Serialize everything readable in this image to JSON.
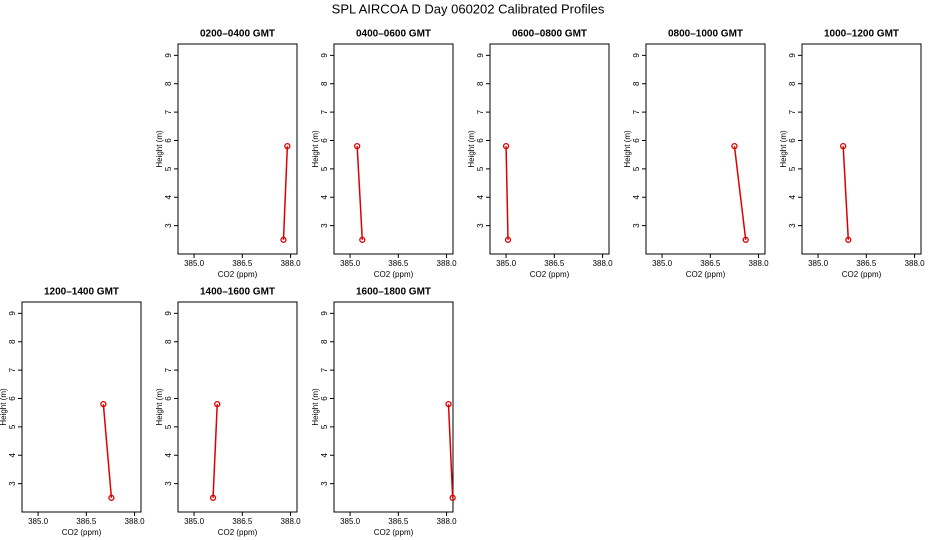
{
  "title": "SPL AIRCOA D  Day 060202  Calibrated Profiles",
  "chart_data": [
    {
      "type": "line",
      "title": "0200–0400 GMT",
      "xlabel": "CO2 (ppm)",
      "ylabel": "Height (m)",
      "color": "#dd0000",
      "x": [
        387.78,
        387.9
      ],
      "values": [
        2.5,
        5.8
      ],
      "xlim": [
        384.5,
        388.2
      ],
      "xticks": [
        {
          "value": 385,
          "label": "385.0"
        },
        {
          "value": 386.5,
          "label": "386.5"
        },
        {
          "value": 388,
          "label": "388.0"
        }
      ],
      "ylim": [
        2.0,
        9.4
      ],
      "yticks": [
        3,
        4,
        5,
        6,
        7,
        8,
        9
      ]
    },
    {
      "type": "line",
      "title": "0400–0600 GMT",
      "xlabel": "CO2 (ppm)",
      "ylabel": "Height (m)",
      "color": "#dd0000",
      "x": [
        385.38,
        385.22
      ],
      "values": [
        2.5,
        5.8
      ],
      "xlim": [
        384.5,
        388.2
      ],
      "xticks": [
        {
          "value": 385,
          "label": "385.0"
        },
        {
          "value": 386.5,
          "label": "386.5"
        },
        {
          "value": 388,
          "label": "388.0"
        }
      ],
      "ylim": [
        2.0,
        9.4
      ],
      "yticks": [
        3,
        4,
        5,
        6,
        7,
        8,
        9
      ]
    },
    {
      "type": "line",
      "title": "0600–0800 GMT",
      "xlabel": "CO2 (ppm)",
      "ylabel": "Height (m)",
      "color": "#dd0000",
      "x": [
        385.06,
        385.0
      ],
      "values": [
        2.5,
        5.8
      ],
      "xlim": [
        384.5,
        388.2
      ],
      "xticks": [
        {
          "value": 385,
          "label": "385.0"
        },
        {
          "value": 386.5,
          "label": "386.5"
        },
        {
          "value": 388,
          "label": "388.0"
        }
      ],
      "ylim": [
        2.0,
        9.4
      ],
      "yticks": [
        3,
        4,
        5,
        6,
        7,
        8,
        9
      ]
    },
    {
      "type": "line",
      "title": "0800–1000 GMT",
      "xlabel": "CO2 (ppm)",
      "ylabel": "Height (m)",
      "color": "#dd0000",
      "x": [
        387.6,
        387.25
      ],
      "values": [
        2.5,
        5.8
      ],
      "xlim": [
        384.5,
        388.2
      ],
      "xticks": [
        {
          "value": 385,
          "label": "385.0"
        },
        {
          "value": 386.5,
          "label": "386.5"
        },
        {
          "value": 388,
          "label": "388.0"
        }
      ],
      "ylim": [
        2.0,
        9.4
      ],
      "yticks": [
        3,
        4,
        5,
        6,
        7,
        8,
        9
      ]
    },
    {
      "type": "line",
      "title": "1000–1200 GMT",
      "xlabel": "CO2 (ppm)",
      "ylabel": "Height (m)",
      "color": "#dd0000",
      "x": [
        385.94,
        385.78
      ],
      "values": [
        2.5,
        5.8
      ],
      "xlim": [
        384.5,
        388.2
      ],
      "xticks": [
        {
          "value": 385,
          "label": "385.0"
        },
        {
          "value": 386.5,
          "label": "386.5"
        },
        {
          "value": 388,
          "label": "388.0"
        }
      ],
      "ylim": [
        2.0,
        9.4
      ],
      "yticks": [
        3,
        4,
        5,
        6,
        7,
        8,
        9
      ]
    },
    {
      "type": "line",
      "title": "1200–1400 GMT",
      "xlabel": "CO2 (ppm)",
      "ylabel": "Height (m)",
      "color": "#dd0000",
      "x": [
        387.28,
        387.03
      ],
      "values": [
        2.5,
        5.8
      ],
      "xlim": [
        384.5,
        388.2
      ],
      "xticks": [
        {
          "value": 385,
          "label": "385.0"
        },
        {
          "value": 386.5,
          "label": "386.5"
        },
        {
          "value": 388,
          "label": "388.0"
        }
      ],
      "ylim": [
        2.0,
        9.4
      ],
      "yticks": [
        3,
        4,
        5,
        6,
        7,
        8,
        9
      ]
    },
    {
      "type": "line",
      "title": "1400–1600 GMT",
      "xlabel": "CO2 (ppm)",
      "ylabel": "Height (m)",
      "color": "#dd0000",
      "x": [
        385.59,
        385.72
      ],
      "values": [
        2.5,
        5.8
      ],
      "xlim": [
        384.5,
        388.2
      ],
      "xticks": [
        {
          "value": 385,
          "label": "385.0"
        },
        {
          "value": 386.5,
          "label": "386.5"
        },
        {
          "value": 388,
          "label": "388.0"
        }
      ],
      "ylim": [
        2.0,
        9.4
      ],
      "yticks": [
        3,
        4,
        5,
        6,
        7,
        8,
        9
      ]
    },
    {
      "type": "line",
      "title": "1600–1800 GMT",
      "xlabel": "CO2 (ppm)",
      "ylabel": "Height (m)",
      "color": "#dd0000",
      "x": [
        388.19,
        388.06
      ],
      "values": [
        2.5,
        5.8
      ],
      "xlim": [
        384.5,
        388.2
      ],
      "xticks": [
        {
          "value": 385,
          "label": "385.0"
        },
        {
          "value": 386.5,
          "label": "386.5"
        },
        {
          "value": 388,
          "label": "388.0"
        }
      ],
      "ylim": [
        2.0,
        9.4
      ],
      "yticks": [
        3,
        4,
        5,
        6,
        7,
        8,
        9
      ]
    }
  ]
}
